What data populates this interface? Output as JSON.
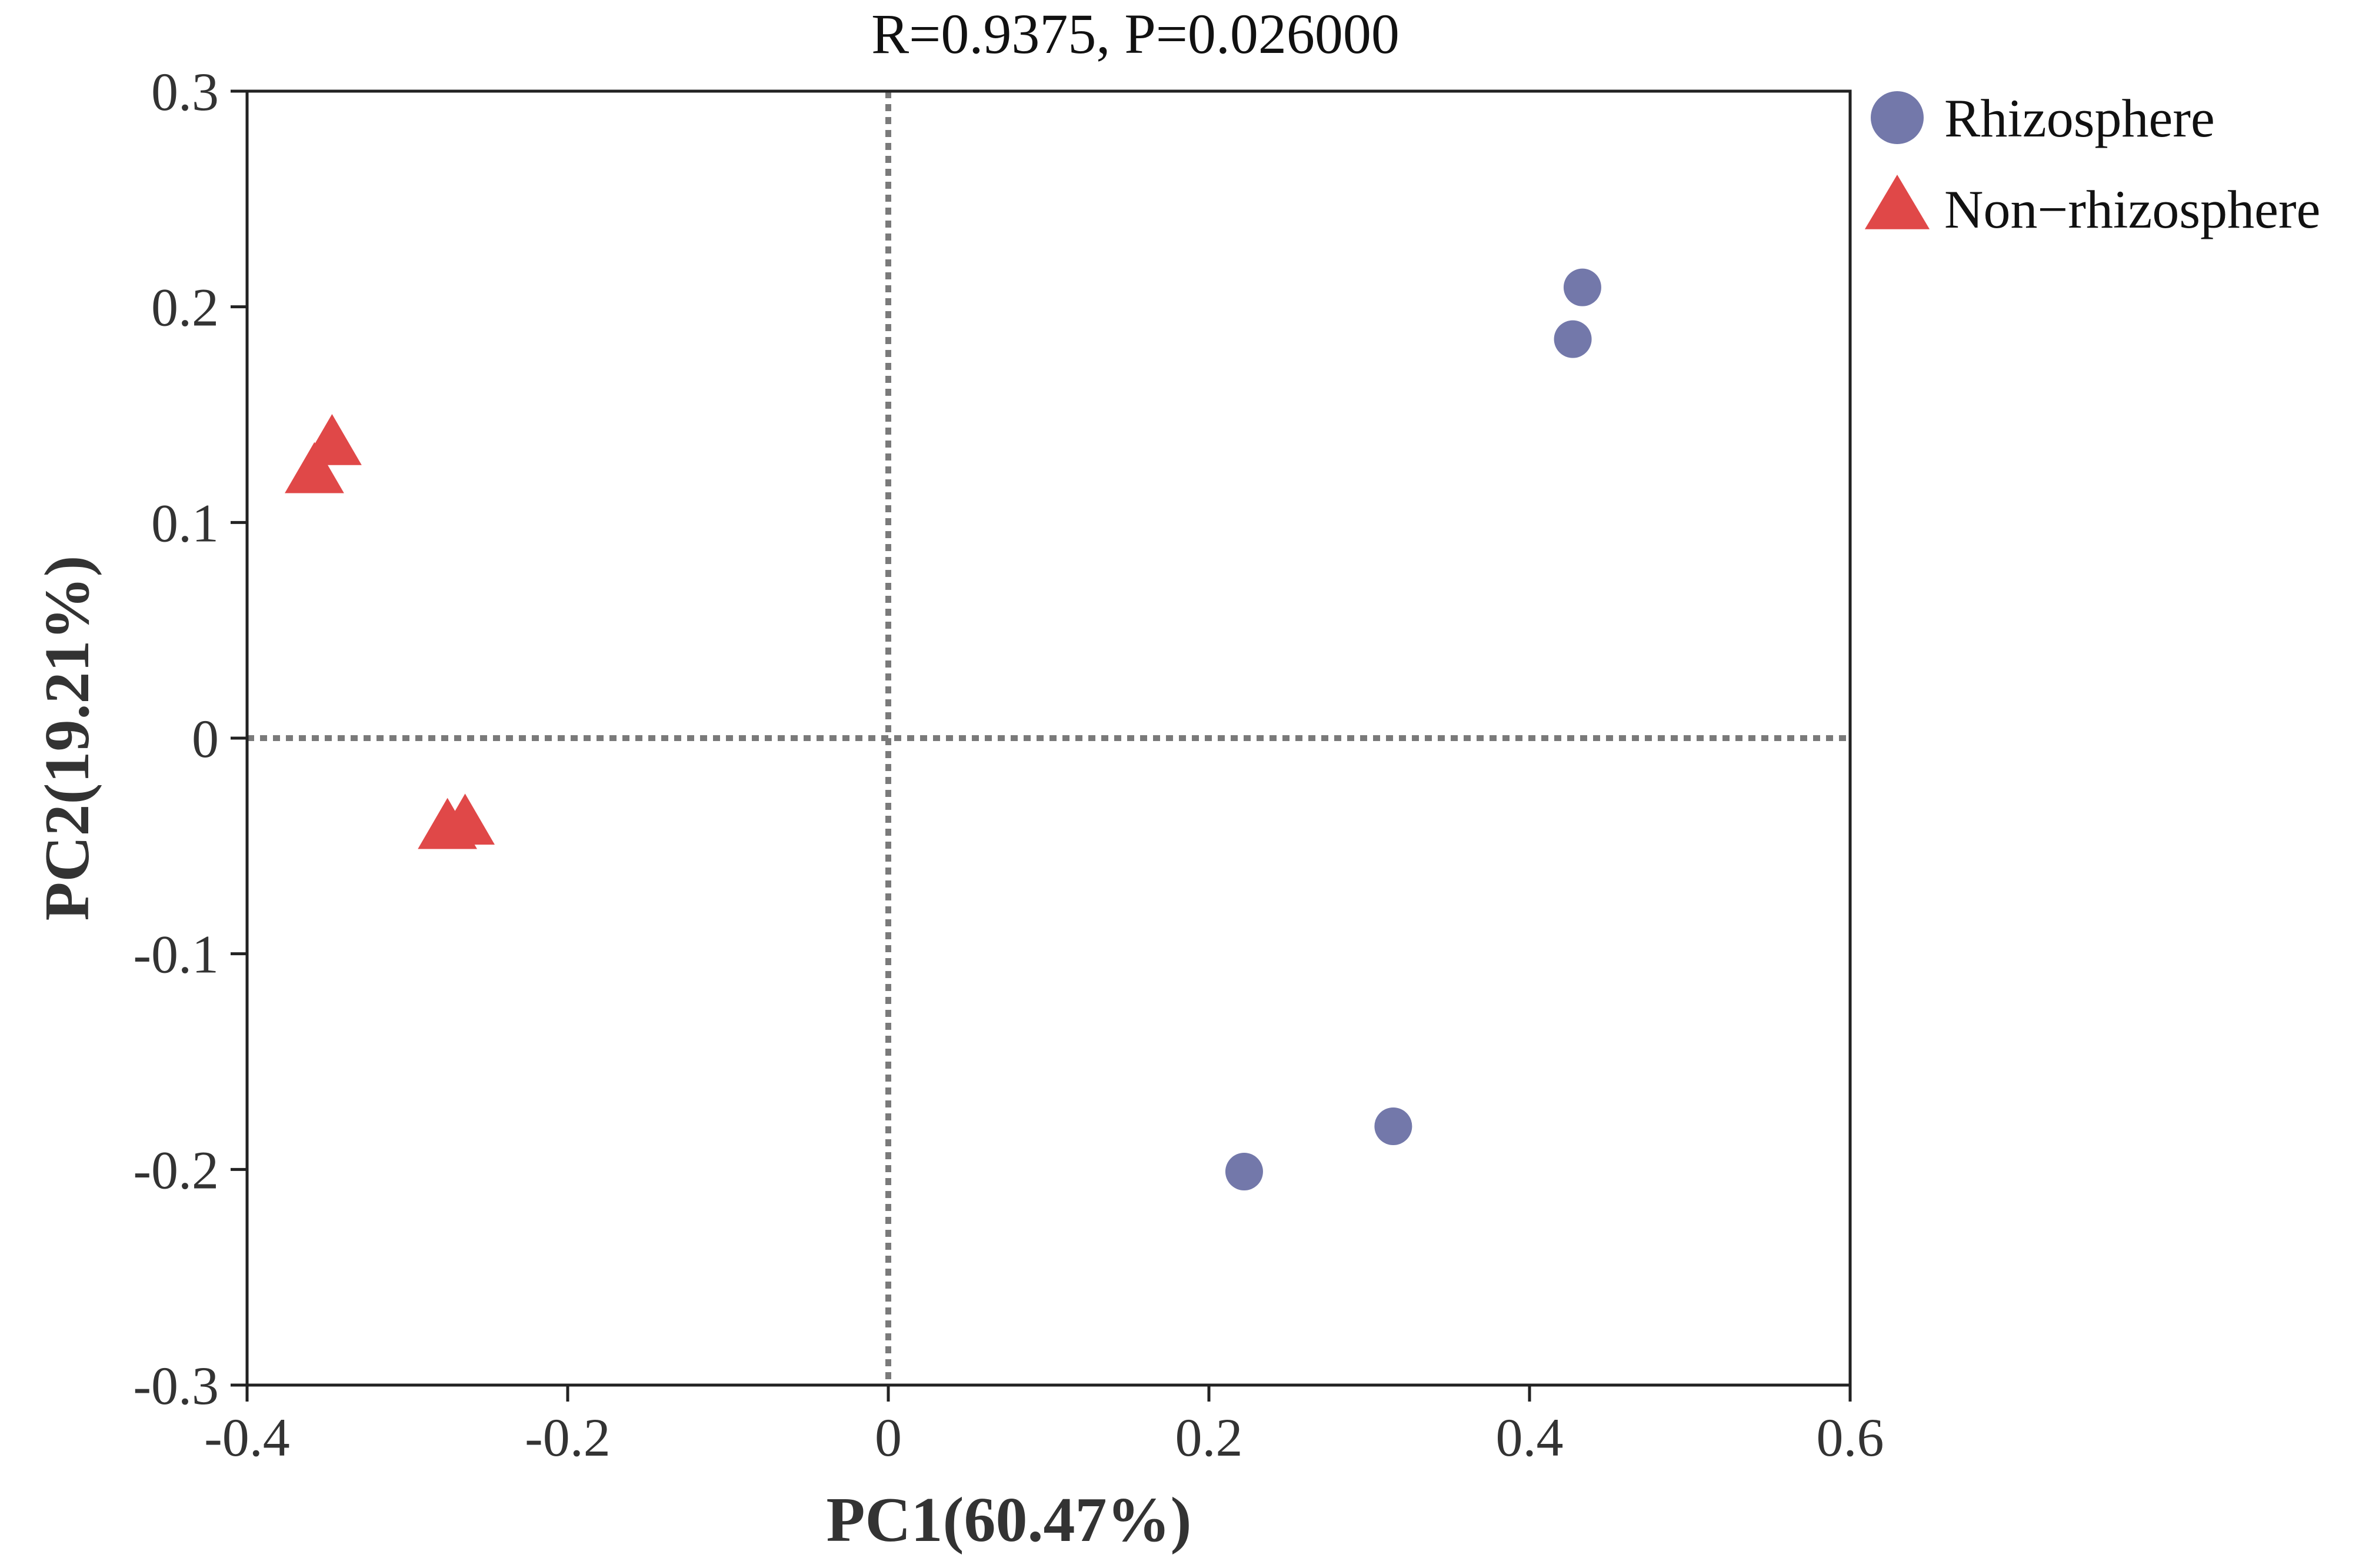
{
  "chart_data": {
    "type": "scatter",
    "title": "R=0.9375, P=0.026000",
    "xlabel": "PC1(60.47%)",
    "ylabel": "PC2(19.21%)",
    "xlim": [
      -0.4,
      0.6
    ],
    "ylim": [
      -0.3,
      0.3
    ],
    "xticks": [
      -0.4,
      -0.2,
      0,
      0.2,
      0.4,
      0.6
    ],
    "xtick_labels": [
      "-0.4",
      "-0.2",
      "0",
      "0.2",
      "0.4",
      "0.6"
    ],
    "yticks": [
      0.3,
      0.2,
      0.1,
      0,
      -0.1,
      -0.2,
      -0.3
    ],
    "ytick_labels": [
      "0.3",
      "0.2",
      "0.1",
      "0",
      "-0.1",
      "-0.2",
      "-0.3"
    ],
    "reference_lines": {
      "x": 0,
      "y": 0,
      "style": "dotted"
    },
    "grid": false,
    "legend_position": "outside-top-right",
    "series": [
      {
        "name": "Rhizosphere",
        "marker": "circle",
        "color": "#7378aa",
        "points": [
          {
            "x": 0.433,
            "y": 0.209
          },
          {
            "x": 0.427,
            "y": 0.185
          },
          {
            "x": 0.315,
            "y": -0.18
          },
          {
            "x": 0.222,
            "y": -0.201
          }
        ]
      },
      {
        "name": "Non−rhizosphere",
        "marker": "triangle",
        "color": "#e04848",
        "points": [
          {
            "x": -0.347,
            "y": 0.135
          },
          {
            "x": -0.358,
            "y": 0.122
          },
          {
            "x": -0.264,
            "y": -0.041
          },
          {
            "x": -0.275,
            "y": -0.043
          }
        ]
      }
    ]
  }
}
